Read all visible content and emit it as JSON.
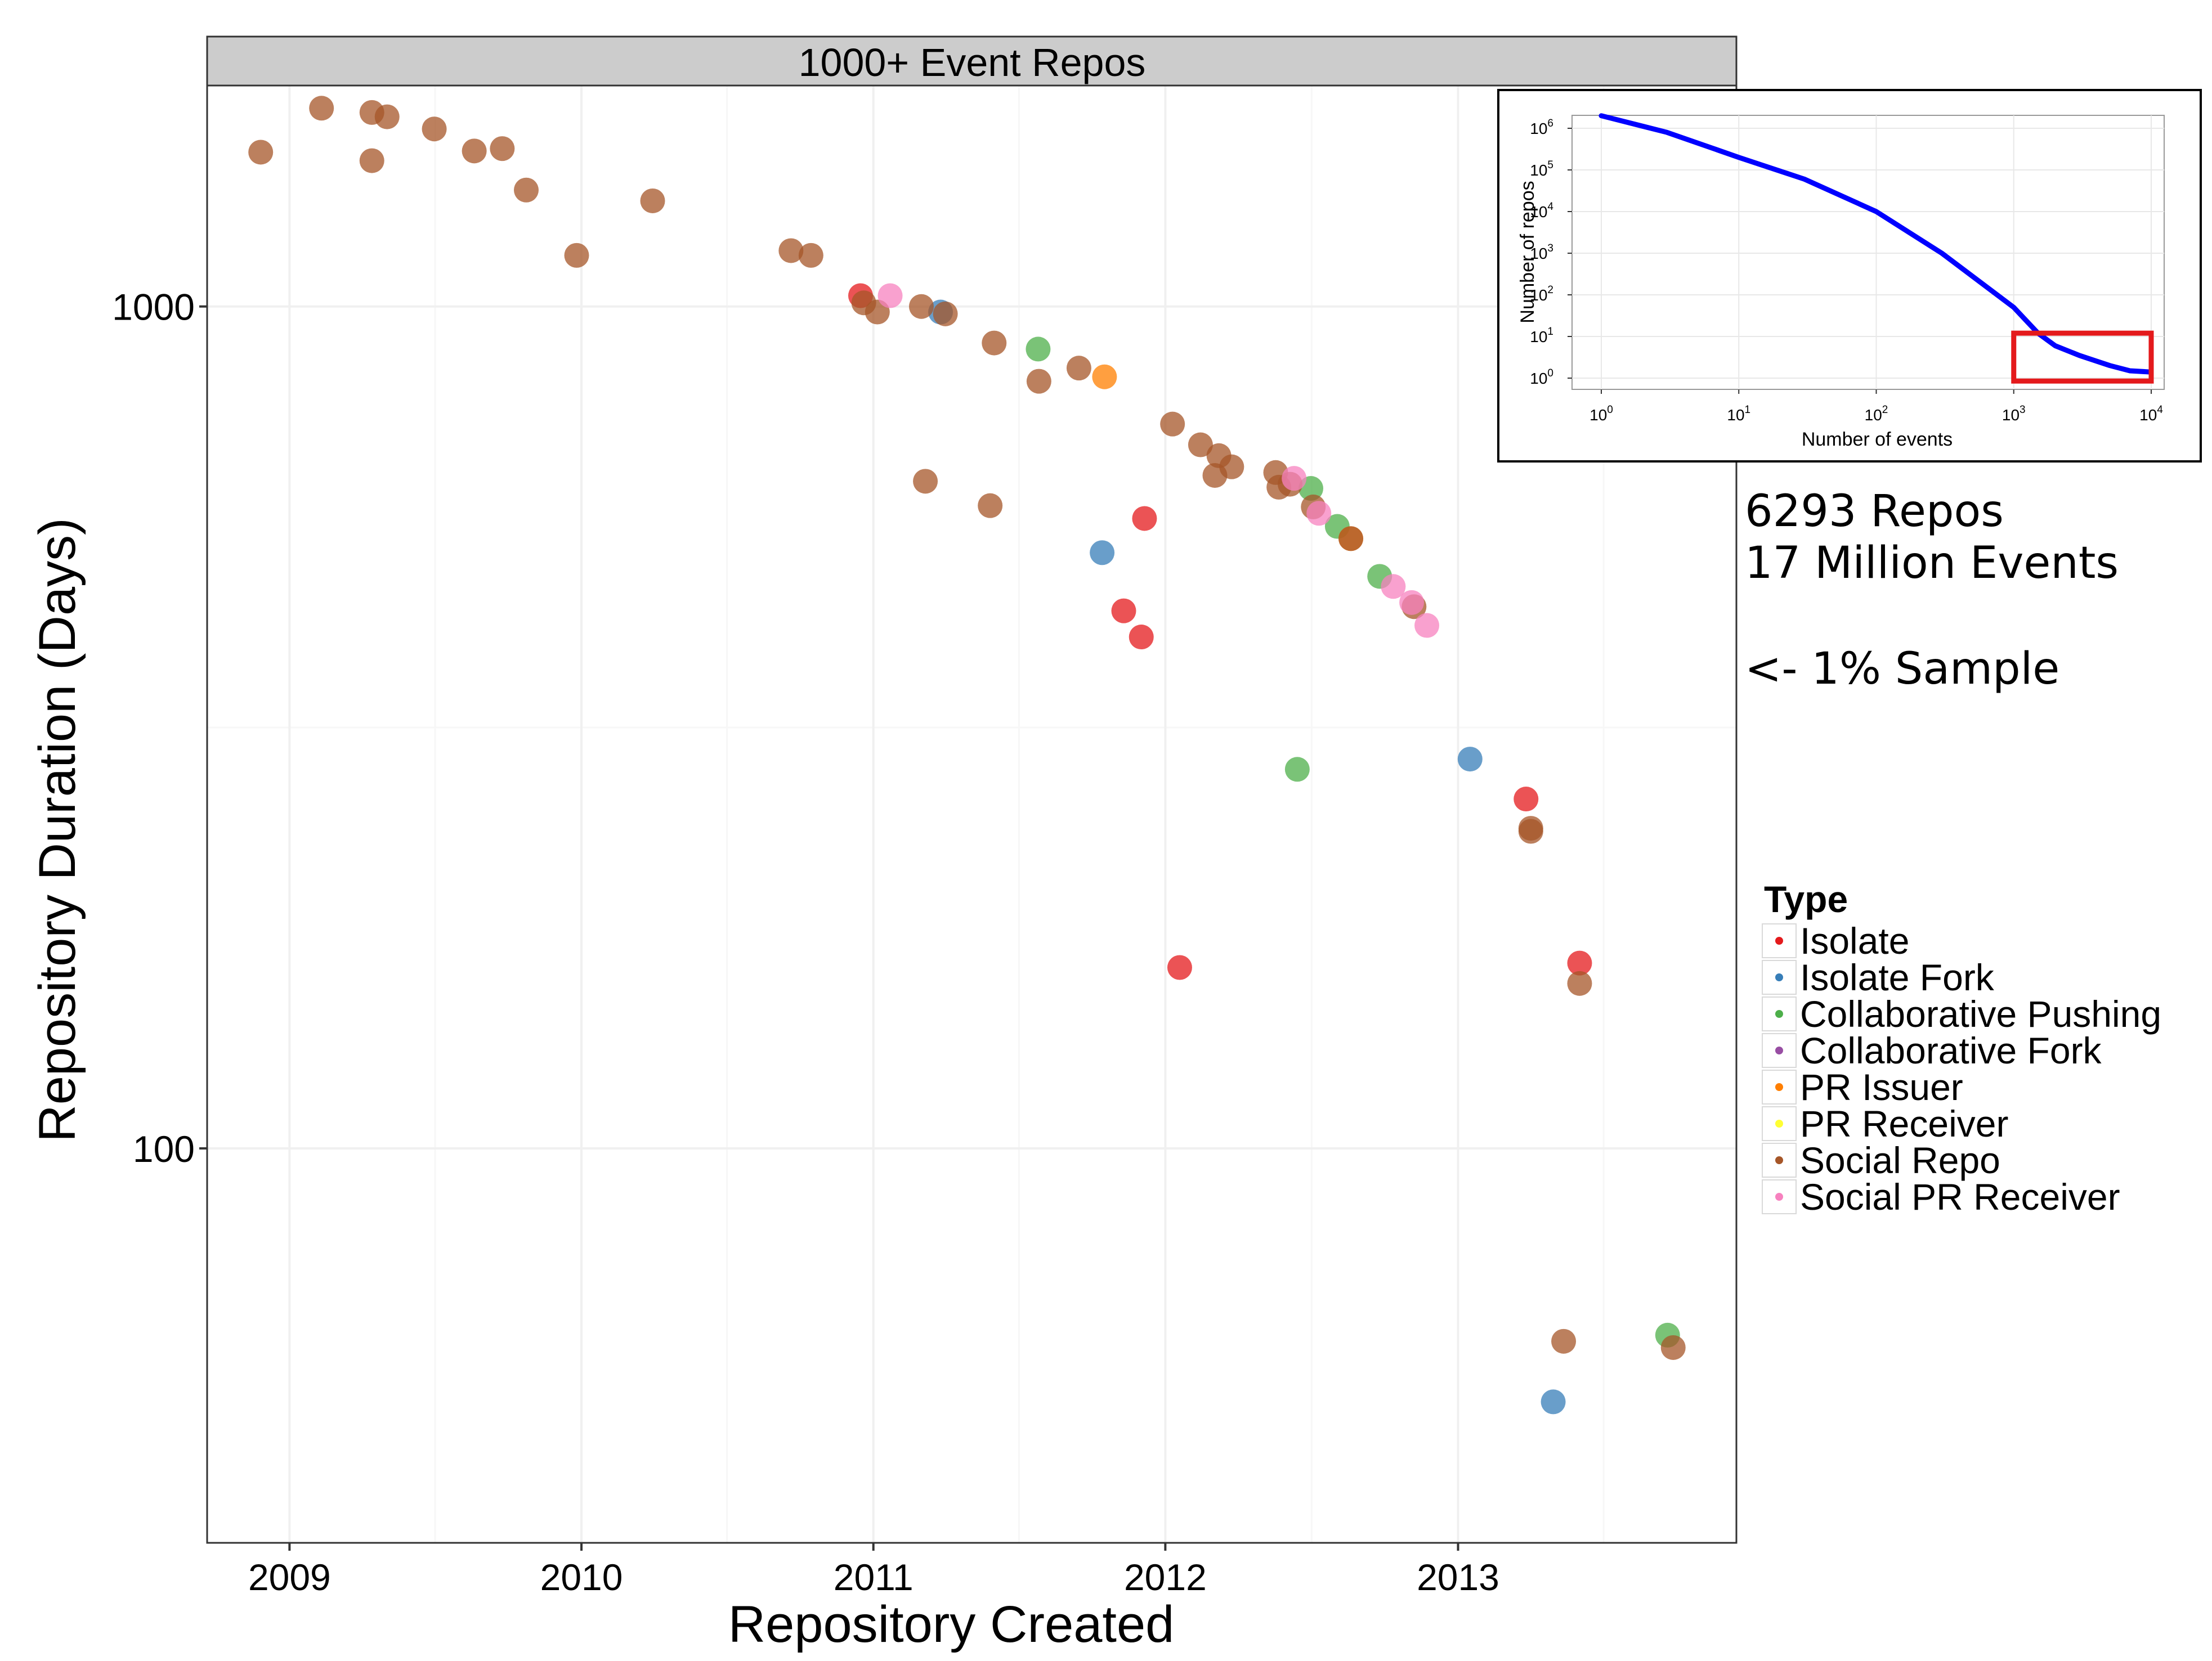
{
  "chart_data": {
    "type": "scatter",
    "facet_title": "1000+ Event Repos",
    "xlabel": "Repository Created",
    "ylabel": "Repository Duration (Days)",
    "x_scale": "time",
    "y_scale": "log10",
    "xlim": [
      "2008-09-20",
      "2013-12-15"
    ],
    "ylim": [
      34,
      1830
    ],
    "x_ticks": [
      "2009",
      "2010",
      "2011",
      "2012",
      "2013"
    ],
    "y_ticks": [
      "100",
      "1000"
    ],
    "grid": true,
    "legend": {
      "title": "Type",
      "position": "right",
      "entries": [
        {
          "name": "Isolate",
          "color": "#e41a1c"
        },
        {
          "name": "Isolate Fork",
          "color": "#377eb8"
        },
        {
          "name": "Collaborative Pushing",
          "color": "#4daf4a"
        },
        {
          "name": "Collaborative Fork",
          "color": "#984ea3"
        },
        {
          "name": "PR Issuer",
          "color": "#ff7f00"
        },
        {
          "name": "PR Receiver",
          "color": "#ffff33"
        },
        {
          "name": "Social Repo",
          "color": "#a65628"
        },
        {
          "name": "Social PR Receiver",
          "color": "#f781bf"
        }
      ]
    },
    "series": [
      {
        "name": "Isolate",
        "points": [
          [
            "2010-12-16",
            1030
          ],
          [
            "2011-12-06",
            560
          ],
          [
            "2011-11-10",
            435
          ],
          [
            "2011-12-02",
            405
          ],
          [
            "2012-01-19",
            164
          ],
          [
            "2013-03-27",
            260
          ],
          [
            "2013-06-02",
            166
          ]
        ]
      },
      {
        "name": "Isolate Fork",
        "points": [
          [
            "2011-03-26",
            985
          ],
          [
            "2011-10-14",
            510
          ],
          [
            "2013-01-16",
            290
          ],
          [
            "2013-04-30",
            50
          ]
        ]
      },
      {
        "name": "Collaborative Pushing",
        "points": [
          [
            "2011-07-26",
            890
          ],
          [
            "2012-06-14",
            282
          ],
          [
            "2012-07-01",
            608
          ],
          [
            "2012-08-03",
            548
          ],
          [
            "2012-09-25",
            478
          ],
          [
            "2013-09-20",
            60
          ]
        ]
      },
      {
        "name": "PR Issuer",
        "points": [
          [
            "2011-10-17",
            825
          ],
          [
            "2012-08-20",
            530
          ]
        ]
      },
      {
        "name": "Social Repo",
        "points": [
          [
            "2008-11-26",
            1525
          ],
          [
            "2009-02-10",
            1720
          ],
          [
            "2009-04-14",
            1700
          ],
          [
            "2009-04-14",
            1490
          ],
          [
            "2009-05-03",
            1680
          ],
          [
            "2009-07-01",
            1625
          ],
          [
            "2009-08-20",
            1530
          ],
          [
            "2009-09-24",
            1540
          ],
          [
            "2009-10-24",
            1375
          ],
          [
            "2009-12-26",
            1150
          ],
          [
            "2010-03-31",
            1335
          ],
          [
            "2010-09-20",
            1165
          ],
          [
            "2010-10-15",
            1150
          ],
          [
            "2010-12-20",
            1010
          ],
          [
            "2011-01-06",
            985
          ],
          [
            "2011-03-02",
            1000
          ],
          [
            "2011-03-07",
            620
          ],
          [
            "2011-04-01",
            980
          ],
          [
            "2011-05-27",
            580
          ],
          [
            "2011-06-01",
            905
          ],
          [
            "2011-07-27",
            815
          ],
          [
            "2011-09-15",
            845
          ],
          [
            "2012-01-10",
            725
          ],
          [
            "2012-02-14",
            685
          ],
          [
            "2012-03-03",
            630
          ],
          [
            "2012-03-08",
            665
          ],
          [
            "2012-03-24",
            645
          ],
          [
            "2012-05-18",
            635
          ],
          [
            "2012-05-22",
            610
          ],
          [
            "2012-06-05",
            615
          ],
          [
            "2012-07-04",
            578
          ],
          [
            "2012-08-20",
            530
          ],
          [
            "2012-11-07",
            440
          ],
          [
            "2013-04-02",
            240
          ],
          [
            "2013-04-02",
            238
          ],
          [
            "2013-05-13",
            59
          ],
          [
            "2013-06-02",
            157
          ],
          [
            "2013-09-27",
            58
          ]
        ]
      },
      {
        "name": "Social PR Receiver",
        "points": [
          [
            "2011-01-22",
            1030
          ],
          [
            "2012-06-10",
            625
          ],
          [
            "2012-07-11",
            568
          ],
          [
            "2012-10-12",
            465
          ],
          [
            "2012-11-04",
            445
          ],
          [
            "2012-11-23",
            418
          ]
        ]
      }
    ]
  },
  "annotations": {
    "line1": "6293 Repos",
    "line2": "17 Million Events",
    "line3": "<- 1% Sample"
  },
  "inset": {
    "xlabel": "Number of events",
    "ylabel": "Number of repos",
    "x_ticks": [
      "0",
      "1",
      "2",
      "3",
      "4"
    ],
    "y_ticks": [
      "0",
      "1",
      "2",
      "3",
      "4",
      "5",
      "6"
    ],
    "tick_base": "10",
    "x_scale": "log10",
    "y_scale": "log10",
    "line_color": "#0000ff",
    "highlight_color": "#e41a1c",
    "highlight_range_events": [
      1000,
      10000
    ],
    "curve": [
      [
        1,
        2000000
      ],
      [
        3,
        800000
      ],
      [
        10,
        200000
      ],
      [
        30,
        60000
      ],
      [
        100,
        10000
      ],
      [
        300,
        1000
      ],
      [
        1000,
        50
      ],
      [
        1500,
        12
      ],
      [
        2000,
        6
      ],
      [
        3000,
        3.5
      ],
      [
        5000,
        2
      ],
      [
        7000,
        1.5
      ],
      [
        10000,
        1.4
      ]
    ]
  }
}
